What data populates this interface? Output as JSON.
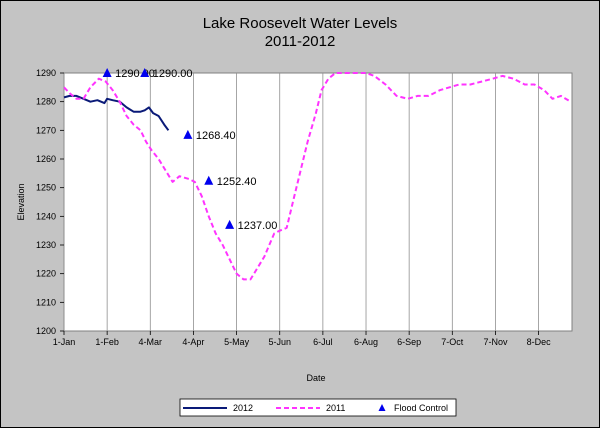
{
  "chart_data": {
    "type": "line",
    "title": "Lake Roosevelt Water Levels",
    "subtitle": "2011-2012",
    "xlabel": "Date",
    "ylabel": "Elevation",
    "x_ticks": [
      "1-Jan",
      "1-Feb",
      "4-Mar",
      "4-Apr",
      "5-May",
      "5-Jun",
      "6-Jul",
      "6-Aug",
      "6-Sep",
      "7-Oct",
      "7-Nov",
      "8-Dec"
    ],
    "ylim": [
      1200,
      1290
    ],
    "y_ticks": [
      1200,
      1210,
      1220,
      1230,
      1240,
      1250,
      1260,
      1270,
      1280,
      1290
    ],
    "grid": "vertical",
    "legend_position": "bottom",
    "series": [
      {
        "name": "2012",
        "color": "#0a1a78",
        "style": "solid",
        "x": [
          "1-Jan",
          "5-Jan",
          "10-Jan",
          "15-Jan",
          "20-Jan",
          "25-Jan",
          "30-Jan",
          "1-Feb",
          "5-Feb",
          "10-Feb",
          "15-Feb",
          "20-Feb",
          "25-Feb",
          "28-Feb",
          "3-Mar",
          "6-Mar",
          "10-Mar",
          "14-Mar",
          "17-Mar"
        ],
        "y": [
          1281.5,
          1282,
          1282,
          1281,
          1280,
          1280.5,
          1279.5,
          1281,
          1280.5,
          1280,
          1278,
          1276.5,
          1276.5,
          1277,
          1278,
          1276,
          1275,
          1272,
          1270
        ]
      },
      {
        "name": "2011",
        "color": "#ff33ff",
        "style": "dashed",
        "x": [
          "1-Jan",
          "5-Jan",
          "10-Jan",
          "15-Jan",
          "20-Jan",
          "26-Jan",
          "31-Jan",
          "5-Feb",
          "10-Feb",
          "15-Feb",
          "20-Feb",
          "25-Feb",
          "1-Mar",
          "5-Mar",
          "10-Mar",
          "15-Mar",
          "20-Mar",
          "25-Mar",
          "1-Apr",
          "5-Apr",
          "10-Apr",
          "15-Apr",
          "20-Apr",
          "25-Apr",
          "1-May",
          "5-May",
          "10-May",
          "15-May",
          "20-May",
          "25-May",
          "1-Jun",
          "5-Jun",
          "10-Jun",
          "15-Jun",
          "20-Jun",
          "25-Jun",
          "1-Jul",
          "5-Jul",
          "10-Jul",
          "15-Jul",
          "20-Jul",
          "25-Jul",
          "1-Aug",
          "6-Aug",
          "12-Aug",
          "20-Aug",
          "28-Aug",
          "5-Sep",
          "12-Sep",
          "20-Sep",
          "28-Sep",
          "5-Oct",
          "12-Oct",
          "20-Oct",
          "28-Oct",
          "5-Nov",
          "12-Nov",
          "20-Nov",
          "28-Nov",
          "5-Dec",
          "12-Dec",
          "18-Dec",
          "24-Dec",
          "31-Dec"
        ],
        "y": [
          1285,
          1283,
          1281,
          1281,
          1285,
          1288,
          1287,
          1284,
          1280,
          1275,
          1272,
          1270,
          1266,
          1263,
          1260,
          1256,
          1252,
          1254,
          1253,
          1252,
          1247,
          1240,
          1234,
          1230,
          1224,
          1220,
          1218,
          1218,
          1222,
          1226,
          1234,
          1235,
          1236,
          1246,
          1256,
          1266,
          1276,
          1284,
          1288,
          1290,
          1290,
          1290,
          1290,
          1290,
          1289,
          1286,
          1282,
          1281,
          1282,
          1282,
          1284,
          1285,
          1286,
          1286,
          1287,
          1288,
          1289,
          1288,
          1286,
          1286,
          1284,
          1281,
          1282,
          1280
        ]
      },
      {
        "name": "Flood Control",
        "color": "#0000ee",
        "style": "marker",
        "x": [
          "1-Feb",
          "28-Feb",
          "31-Mar",
          "15-Apr",
          "30-Apr"
        ],
        "y": [
          1290,
          1290,
          1268.4,
          1252.4,
          1237
        ],
        "labels": [
          "1290.00",
          "1290.00",
          "1268.40",
          "1252.40",
          "1237.00"
        ]
      }
    ]
  }
}
